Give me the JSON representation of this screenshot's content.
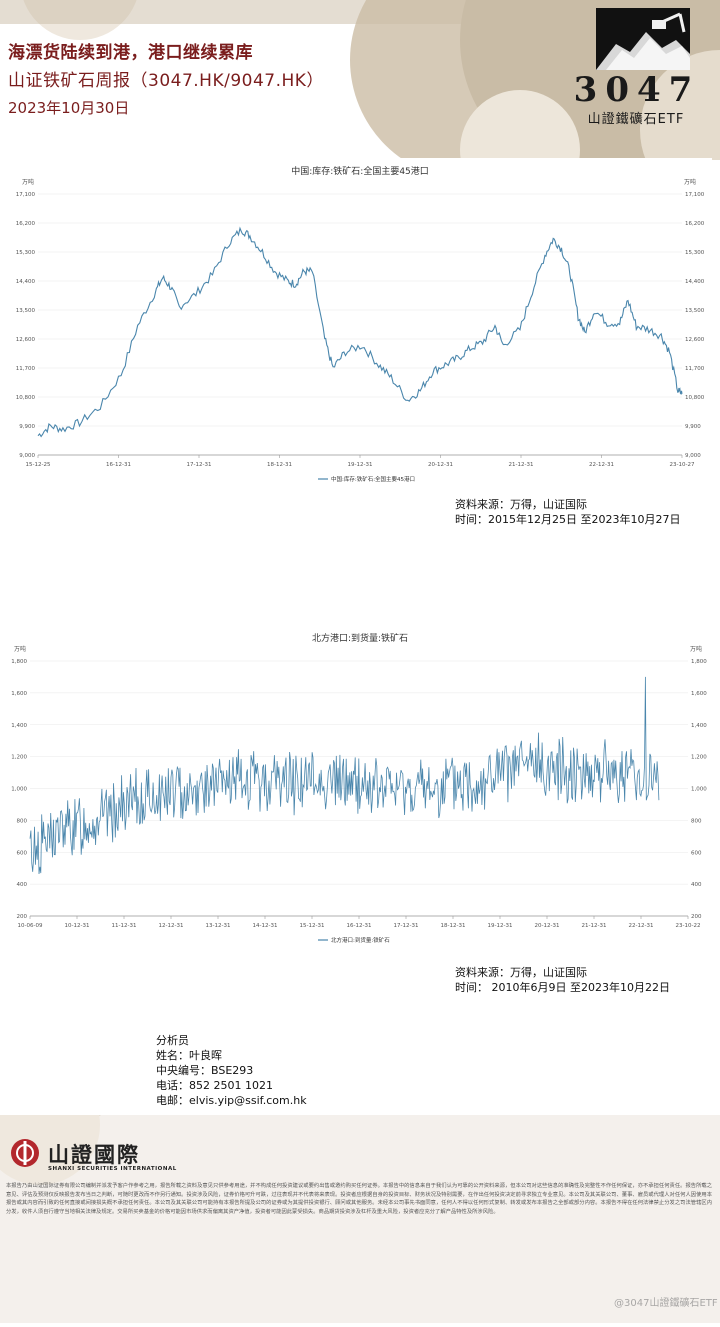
{
  "header": {
    "title": "海漂货陆续到港，港口继续累库",
    "subtitle": "山证铁矿石周报（3047.HK/9047.HK）",
    "date": "2023年10月30日",
    "logo_code": "3047",
    "logo_name": "山證鐵礦石ETF"
  },
  "chart_data": [
    {
      "type": "line",
      "title": "中国:库存:铁矿石:全国主要45港口",
      "unit_left": "万吨",
      "unit_right": "万吨",
      "ylim": [
        9000,
        17100
      ],
      "yticks": [
        "9,000",
        "9,900",
        "10,800",
        "11,700",
        "12,600",
        "13,500",
        "14,400",
        "15,300",
        "16,200",
        "17,100"
      ],
      "xticks": [
        "15-12-25",
        "16-12-31",
        "17-12-31",
        "18-12-31",
        "19-12-31",
        "20-12-31",
        "21-12-31",
        "22-12-31",
        "23-10-27"
      ],
      "legend": "中国:库存:铁矿石:全国主要45港口",
      "series": [
        {
          "name": "中国:库存:铁矿石:全国主要45港口",
          "color": "#4a86ac",
          "points": [
            [
              0,
              9600
            ],
            [
              0.15,
              9900
            ],
            [
              0.3,
              9800
            ],
            [
              0.5,
              10000
            ],
            [
              0.75,
              10500
            ],
            [
              1.0,
              11500
            ],
            [
              1.2,
              13000
            ],
            [
              1.4,
              14000
            ],
            [
              1.5,
              14500
            ],
            [
              1.6,
              14200
            ],
            [
              1.7,
              13600
            ],
            [
              1.9,
              14000
            ],
            [
              2.1,
              14600
            ],
            [
              2.3,
              15600
            ],
            [
              2.45,
              16000
            ],
            [
              2.55,
              15800
            ],
            [
              2.7,
              15300
            ],
            [
              2.85,
              14700
            ],
            [
              3.0,
              14400
            ],
            [
              3.1,
              14300
            ],
            [
              3.2,
              14700
            ],
            [
              3.3,
              14700
            ],
            [
              3.45,
              12600
            ],
            [
              3.55,
              11700
            ],
            [
              3.7,
              12200
            ],
            [
              3.9,
              12400
            ],
            [
              4.1,
              11800
            ],
            [
              4.25,
              11400
            ],
            [
              4.45,
              10700
            ],
            [
              4.6,
              11000
            ],
            [
              4.75,
              11600
            ],
            [
              4.9,
              11800
            ],
            [
              5.05,
              12000
            ],
            [
              5.2,
              12300
            ],
            [
              5.35,
              12500
            ],
            [
              5.5,
              13000
            ],
            [
              5.6,
              12400
            ],
            [
              5.8,
              12900
            ],
            [
              5.95,
              14100
            ],
            [
              6.1,
              15200
            ],
            [
              6.2,
              15700
            ],
            [
              6.3,
              15400
            ],
            [
              6.4,
              14700
            ],
            [
              6.5,
              13300
            ],
            [
              6.58,
              12800
            ],
            [
              6.7,
              13500
            ],
            [
              6.85,
              13100
            ],
            [
              7.0,
              13100
            ],
            [
              7.1,
              13800
            ],
            [
              7.2,
              13000
            ],
            [
              7.35,
              12900
            ],
            [
              7.5,
              12700
            ],
            [
              7.6,
              12200
            ],
            [
              7.7,
              11000
            ],
            [
              7.75,
              10900
            ]
          ]
        }
      ]
    },
    {
      "type": "line",
      "title": "北方港口:到货量:铁矿石",
      "unit_left": "万吨",
      "unit_right": "万吨",
      "ylim": [
        200,
        1800
      ],
      "yticks": [
        "200",
        "400",
        "600",
        "800",
        "1,000",
        "1,200",
        "1,400",
        "1,600",
        "1,800"
      ],
      "xticks": [
        "10-06-09",
        "10-12-31",
        "11-12-31",
        "12-12-31",
        "13-12-31",
        "14-12-31",
        "15-12-31",
        "16-12-31",
        "17-12-31",
        "18-12-31",
        "19-12-31",
        "20-12-31",
        "21-12-31",
        "22-12-31",
        "23-10-22"
      ],
      "legend": "北方港口:到货量:铁矿石",
      "series": [
        {
          "name": "北方港口:到货量:铁矿石",
          "color": "#4a86ac",
          "trend": [
            [
              0,
              600
            ],
            [
              0.55,
              720
            ],
            [
              1.5,
              820
            ],
            [
              2.5,
              940
            ],
            [
              3.5,
              1000
            ],
            [
              4.5,
              1040
            ],
            [
              5.5,
              1050
            ],
            [
              6.5,
              1040
            ],
            [
              7.5,
              1000
            ],
            [
              8.5,
              990
            ],
            [
              9.5,
              1040
            ],
            [
              10.5,
              1140
            ],
            [
              11.5,
              1120
            ],
            [
              12.5,
              1100
            ],
            [
              13.38,
              1050
            ]
          ],
          "spike": {
            "x": 13.1,
            "value": 1700
          }
        }
      ]
    }
  ],
  "source1": {
    "line1": "资料来源：万得，山证国际",
    "line2": "时间：2015年12月25日 至2023年10月27日"
  },
  "source2": {
    "line1": "资料来源：万得，山证国际",
    "line2": "时间：  2010年6月9日 至2023年10月22日"
  },
  "analyst": {
    "role": "分析员",
    "name": "姓名：叶良晖",
    "id": "中央编号：BSE293",
    "phone": "电话：852 2501 1021",
    "email": "电邮：elvis.yip@ssif.com.hk"
  },
  "footer": {
    "company_cn": "山證國際",
    "company_en": "SHANXI SECURITIES INTERNATIONAL",
    "disclaimer": "本报告乃由山证国际证券有限公司编制并派发予客户作参考之用，报告所载之资料及意见只供参考用途，并不构成任何投资建议或要约出售或邀约购买任何证券。本报告中的信息来自于我们认为可靠的公开资料来源，但本公司对这些信息的准确性及完整性不作任何保证，亦不承担任何责任。报告所载之意见、评估及预测仅反映报告发布当日之判断，可随时更改而不作另行通知。投资涉及风险，证券价格可升可跌，过往表现并不代表将来表现。投资者应根据自身的投资目标、财务状况及特别需要，在作出任何投资决定前寻求独立专业意见。本公司及其关联公司、董事、雇员或代理人对任何人因使用本报告或其内容而引致的任何直接或间接损失概不承担任何责任。本公司及其关联公司可能持有本报告所提及公司的证券或为其提供投资银行、顾问或其他服务。未经本公司事先书面同意，任何人不得以任何形式复制、转发或发布本报告之全部或部分内容。本报告不得在任何法律禁止分发之司法管辖区内分发，收件人须自行遵守当地相关法律及规定。交易所买卖基金的价格可能因市场供求而偏离其资产净值，投资者可能因此蒙受损失。商品期货投资涉及杠杆及重大风险，投资者应充分了解产品特性及所涉风险。",
    "watermark": "@3047山證鐵礦石ETF"
  },
  "colors": {
    "accent": "#7a1d1d",
    "line": "#4a86ac",
    "beige": "#c9bca6"
  }
}
